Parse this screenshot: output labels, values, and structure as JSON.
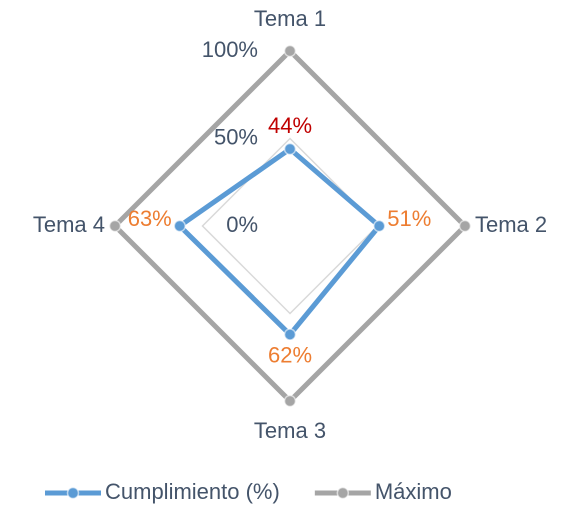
{
  "chart_data": {
    "type": "radar",
    "categories": [
      "Tema 1",
      "Tema 2",
      "Tema 3",
      "Tema 4"
    ],
    "series": [
      {
        "name": "Cumplimiento (%)",
        "color": "#5b9bd5",
        "values": [
          44,
          51,
          62,
          63
        ],
        "value_labels": [
          "44%",
          "51%",
          "62%",
          "63%"
        ],
        "value_label_colors": [
          "#c00000",
          "#ed7d31",
          "#ed7d31",
          "#ed7d31"
        ]
      },
      {
        "name": "Máximo",
        "color": "#a5a5a5",
        "values": [
          100,
          100,
          100,
          100
        ]
      }
    ],
    "ylim": [
      0,
      100
    ],
    "yticks": [
      {
        "value": 0,
        "label": "0%"
      },
      {
        "value": 50,
        "label": "50%"
      },
      {
        "value": 100,
        "label": "100%"
      }
    ],
    "grid": true,
    "legend": "bottom"
  }
}
